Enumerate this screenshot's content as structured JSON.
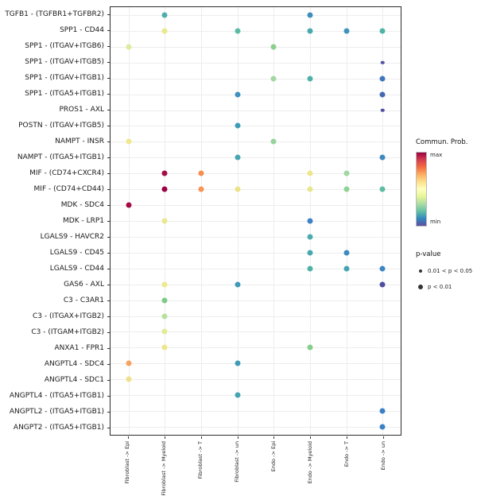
{
  "chart_data": {
    "type": "scatter",
    "chart_kind": "bubble-dotplot",
    "x_categories": [
      "Fibroblast -> Epi",
      "Fibroblast -> Myeloid",
      "Fibroblast -> T",
      "Fibroblast -> un",
      "Endo -> Epi",
      "Endo -> Myeloid",
      "Endo -> T",
      "Endo -> un"
    ],
    "y_categories": [
      "TGFB1 - (TGFBR1+TGFBR2)",
      "SPP1 - CD44",
      "SPP1 - (ITGAV+ITGB6)",
      "SPP1 - (ITGAV+ITGB5)",
      "SPP1 - (ITGAV+ITGB1)",
      "SPP1 - (ITGA5+ITGB1)",
      "PROS1 - AXL",
      "POSTN - (ITGAV+ITGB5)",
      "NAMPT - INSR",
      "NAMPT - (ITGA5+ITGB1)",
      "MIF - (CD74+CXCR4)",
      "MIF - (CD74+CD44)",
      "MDK - SDC4",
      "MDK - LRP1",
      "LGALS9 - HAVCR2",
      "LGALS9 - CD45",
      "LGALS9 - CD44",
      "GAS6 - AXL",
      "C3 - C3AR1",
      "C3 - (ITGAX+ITGB2)",
      "C3 - (ITGAM+ITGB2)",
      "ANXA1 - FPR1",
      "ANGPTL4 - SDC4",
      "ANGPTL4 - SDC1",
      "ANGPTL4 - (ITGA5+ITGB1)",
      "ANGPTL2 - (ITGA5+ITGB1)",
      "ANGPT2 - (ITGA5+ITGB1)"
    ],
    "points": [
      {
        "r": 0,
        "c": 1,
        "color": "#4FAFAC",
        "size": "large"
      },
      {
        "r": 0,
        "c": 5,
        "color": "#3E8EBE",
        "size": "large"
      },
      {
        "r": 1,
        "c": 1,
        "color": "#E9E88F",
        "size": "large"
      },
      {
        "r": 1,
        "c": 3,
        "color": "#5BBBA4",
        "size": "large"
      },
      {
        "r": 1,
        "c": 5,
        "color": "#47A9AF",
        "size": "large"
      },
      {
        "r": 1,
        "c": 6,
        "color": "#3E93BC",
        "size": "large"
      },
      {
        "r": 1,
        "c": 7,
        "color": "#4FB2A7",
        "size": "large"
      },
      {
        "r": 2,
        "c": 0,
        "color": "#D9ED9C",
        "size": "large"
      },
      {
        "r": 2,
        "c": 4,
        "color": "#8BCF8D",
        "size": "large"
      },
      {
        "r": 3,
        "c": 7,
        "color": "#5452A3",
        "size": "small"
      },
      {
        "r": 4,
        "c": 4,
        "color": "#A2D7A1",
        "size": "large"
      },
      {
        "r": 4,
        "c": 5,
        "color": "#50B1A8",
        "size": "large"
      },
      {
        "r": 4,
        "c": 7,
        "color": "#4077BC",
        "size": "large"
      },
      {
        "r": 5,
        "c": 3,
        "color": "#3E90BF",
        "size": "large"
      },
      {
        "r": 5,
        "c": 7,
        "color": "#4468B0",
        "size": "large"
      },
      {
        "r": 6,
        "c": 7,
        "color": "#514FA2",
        "size": "small"
      },
      {
        "r": 7,
        "c": 3,
        "color": "#3F9CB7",
        "size": "large"
      },
      {
        "r": 8,
        "c": 0,
        "color": "#EFE88C",
        "size": "large"
      },
      {
        "r": 8,
        "c": 4,
        "color": "#97D49D",
        "size": "large"
      },
      {
        "r": 9,
        "c": 3,
        "color": "#46A6B1",
        "size": "large"
      },
      {
        "r": 9,
        "c": 7,
        "color": "#3D89C0",
        "size": "large"
      },
      {
        "r": 10,
        "c": 1,
        "color": "#A80C47",
        "size": "large"
      },
      {
        "r": 10,
        "c": 2,
        "color": "#F88D51",
        "size": "large"
      },
      {
        "r": 10,
        "c": 5,
        "color": "#EDE78C",
        "size": "large"
      },
      {
        "r": 10,
        "c": 6,
        "color": "#A0D7A3",
        "size": "large"
      },
      {
        "r": 11,
        "c": 1,
        "color": "#9E0142",
        "size": "large"
      },
      {
        "r": 11,
        "c": 2,
        "color": "#F99455",
        "size": "large"
      },
      {
        "r": 11,
        "c": 3,
        "color": "#ECE389",
        "size": "large"
      },
      {
        "r": 11,
        "c": 5,
        "color": "#E9E78E",
        "size": "large"
      },
      {
        "r": 11,
        "c": 6,
        "color": "#8FD295",
        "size": "large"
      },
      {
        "r": 11,
        "c": 7,
        "color": "#5CBDA3",
        "size": "large"
      },
      {
        "r": 12,
        "c": 0,
        "color": "#A50B46",
        "size": "large"
      },
      {
        "r": 13,
        "c": 1,
        "color": "#EAE88E",
        "size": "large"
      },
      {
        "r": 13,
        "c": 5,
        "color": "#3C82C5",
        "size": "large"
      },
      {
        "r": 14,
        "c": 5,
        "color": "#4AACAD",
        "size": "large"
      },
      {
        "r": 15,
        "c": 5,
        "color": "#47A9AF",
        "size": "large"
      },
      {
        "r": 15,
        "c": 6,
        "color": "#3A8AC1",
        "size": "large"
      },
      {
        "r": 16,
        "c": 5,
        "color": "#4FB2A7",
        "size": "large"
      },
      {
        "r": 16,
        "c": 6,
        "color": "#44A2B4",
        "size": "large"
      },
      {
        "r": 16,
        "c": 7,
        "color": "#3C86C3",
        "size": "large"
      },
      {
        "r": 17,
        "c": 1,
        "color": "#ECEA8D",
        "size": "large"
      },
      {
        "r": 17,
        "c": 3,
        "color": "#3F99B8",
        "size": "large"
      },
      {
        "r": 17,
        "c": 7,
        "color": "#4E4FA2",
        "size": "large"
      },
      {
        "r": 18,
        "c": 1,
        "color": "#7ECA8A",
        "size": "large"
      },
      {
        "r": 19,
        "c": 1,
        "color": "#B7E29B",
        "size": "large"
      },
      {
        "r": 20,
        "c": 1,
        "color": "#E2EC94",
        "size": "large"
      },
      {
        "r": 21,
        "c": 1,
        "color": "#EDE78B",
        "size": "large"
      },
      {
        "r": 21,
        "c": 5,
        "color": "#84CD8D",
        "size": "large"
      },
      {
        "r": 22,
        "c": 0,
        "color": "#F8A35D",
        "size": "large"
      },
      {
        "r": 22,
        "c": 3,
        "color": "#3F9BB8",
        "size": "large"
      },
      {
        "r": 23,
        "c": 0,
        "color": "#EFE189",
        "size": "large"
      },
      {
        "r": 24,
        "c": 3,
        "color": "#45A4B2",
        "size": "large"
      },
      {
        "r": 25,
        "c": 7,
        "color": "#3B7FC6",
        "size": "large"
      },
      {
        "r": 26,
        "c": 7,
        "color": "#3B81C5",
        "size": "large"
      }
    ],
    "legend": {
      "color_title": "Commun. Prob.",
      "color_max_label": "max",
      "color_min_label": "min",
      "gradient": [
        "#9E0142",
        "#D53E4F",
        "#F46D43",
        "#FDAE61",
        "#FEE08B",
        "#FFFFBF",
        "#E6F598",
        "#ABDDA4",
        "#66C2A5",
        "#3288BD",
        "#5E4FA2"
      ],
      "size_title": "p-value",
      "size_items": [
        {
          "label": "0.01 < p < 0.05",
          "size": "small"
        },
        {
          "label": "p < 0.01",
          "size": "large"
        }
      ]
    }
  }
}
